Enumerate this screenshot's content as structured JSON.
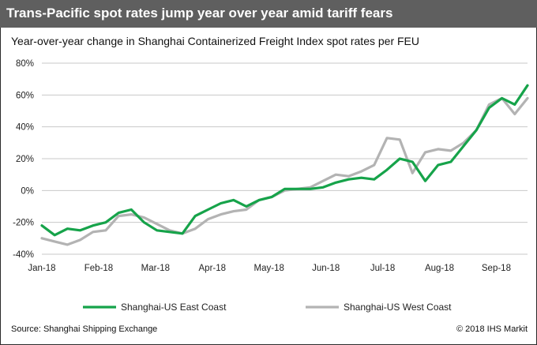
{
  "header": {
    "title": "Trans-Pacific spot rates jump year over year amid tariff fears",
    "banner_color": "#5f5f5f"
  },
  "footer": {
    "source": "Source: Shanghai Shipping Exchange",
    "copyright": "© 2018 IHS Markit"
  },
  "chart_data": {
    "type": "line",
    "title": "Year-over-year change in Shanghai Containerized Freight Index spot rates per FEU",
    "xlabel": "",
    "ylabel": "",
    "x_ticks": [
      "Jan-18",
      "Feb-18",
      "Mar-18",
      "Apr-18",
      "May-18",
      "Jun-18",
      "Jul-18",
      "Aug-18",
      "Sep-18"
    ],
    "y_ticks": [
      "-40%",
      "-20%",
      "0%",
      "20%",
      "40%",
      "60%",
      "80%"
    ],
    "ylim": [
      -40,
      80
    ],
    "grid": "horizontal",
    "legend_position": "bottom",
    "x_unit": "weekly observations, Jan-18 = week 0",
    "series": [
      {
        "name": "Shanghai-US East Coast",
        "color": "#16a34a",
        "values": [
          -22,
          -28,
          -24,
          -25,
          -22,
          -20,
          -14,
          -12,
          -20,
          -25,
          -26,
          -27,
          -16,
          -12,
          -8,
          -6,
          -10,
          -6,
          -4,
          1,
          1,
          1,
          2,
          5,
          7,
          8,
          7,
          13,
          20,
          18,
          6,
          16,
          18,
          28,
          38,
          52,
          58,
          54,
          66
        ]
      },
      {
        "name": "Shanghai-US West Coast",
        "color": "#b3b3b3",
        "values": [
          -30,
          -32,
          -34,
          -31,
          -26,
          -25,
          -16,
          -15,
          -17,
          -21,
          -25,
          -27,
          -24,
          -18,
          -15,
          -13,
          -12,
          -6,
          -4,
          0,
          1,
          2,
          6,
          10,
          9,
          12,
          16,
          33,
          32,
          11,
          24,
          26,
          25,
          30,
          38,
          54,
          58,
          48,
          58
        ]
      }
    ]
  }
}
